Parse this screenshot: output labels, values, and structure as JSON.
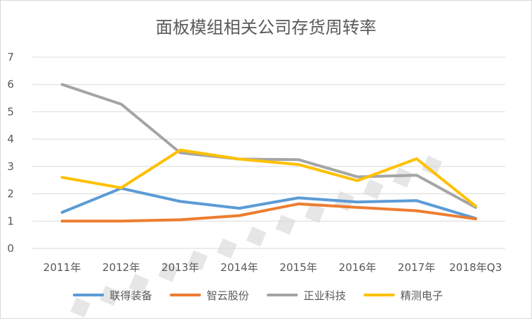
{
  "chart_data": {
    "type": "line",
    "title": "面板模组相关公司存货周转率",
    "categories": [
      "2011年",
      "2012年",
      "2013年",
      "2014年",
      "2015年",
      "2016年",
      "2017年",
      "2018年Q3"
    ],
    "ylim": [
      0,
      7
    ],
    "yticks": [
      "0",
      "1",
      "2",
      "3",
      "4",
      "5",
      "6",
      "7"
    ],
    "grid": true,
    "legend_position": "bottom",
    "series": [
      {
        "name": "联得装备",
        "color": "#5B9BD5",
        "values": [
          1.32,
          2.2,
          1.72,
          1.47,
          1.85,
          1.7,
          1.75,
          1.1
        ]
      },
      {
        "name": "智云股份",
        "color": "#ED7D31",
        "values": [
          1.0,
          1.0,
          1.05,
          1.2,
          1.63,
          1.5,
          1.38,
          1.08
        ]
      },
      {
        "name": "正业科技",
        "color": "#A5A5A5",
        "values": [
          6.0,
          5.28,
          3.5,
          3.27,
          3.25,
          2.62,
          2.68,
          1.5
        ]
      },
      {
        "name": "精测电子",
        "color": "#FFC000",
        "values": [
          2.6,
          2.22,
          3.6,
          3.27,
          3.07,
          2.48,
          3.28,
          1.55
        ]
      }
    ]
  }
}
